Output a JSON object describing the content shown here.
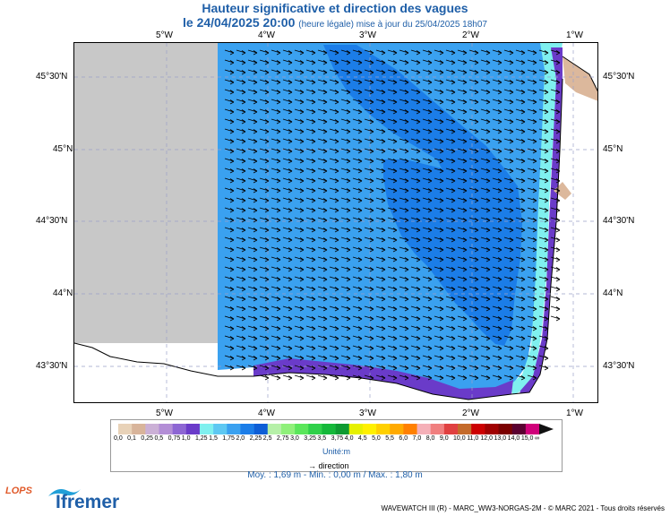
{
  "header": {
    "title": "Hauteur significative et direction des vagues",
    "datetime": "le 24/04/2025 20:00",
    "subtitle": "(heure légale) mise à jour du 25/04/2025 18h07"
  },
  "axes": {
    "lon_labels": [
      "5°W",
      "4°W",
      "3°W",
      "2°W",
      "1°W"
    ],
    "lat_labels": [
      "45°30'N",
      "45°N",
      "44°30'N",
      "44°N",
      "43°30'N"
    ]
  },
  "legend": {
    "ticks": [
      "0,0",
      "0,1",
      "0,25",
      "0,5",
      "0,75",
      "1,0",
      "1,25",
      "1,5",
      "1,75",
      "2,0",
      "2,25",
      "2,5",
      "2,75",
      "3,0",
      "3,25",
      "3,5",
      "3,75",
      "4,0",
      "4,5",
      "5,0",
      "5,5",
      "6,0",
      "7,0",
      "8,0",
      "9,0",
      "10,0",
      "11,0",
      "12,0",
      "13,0",
      "14,0",
      "15,0",
      "∞"
    ],
    "colors": [
      "#e8d2b8",
      "#d8b49a",
      "#cbb0d6",
      "#b38ed6",
      "#8d66d3",
      "#6a3bc9",
      "#7ff0ef",
      "#5ec8f2",
      "#3aa1f0",
      "#1b7de8",
      "#0d5ed6",
      "#b6f0a8",
      "#8ff07a",
      "#5ae65a",
      "#2fd04a",
      "#15b83a",
      "#0e9a31",
      "#e6f000",
      "#fff000",
      "#ffd000",
      "#ffaa00",
      "#ff8000",
      "#f5b0b8",
      "#f07f7f",
      "#e04040",
      "#c46a2a",
      "#cc0000",
      "#a00000",
      "#7a0000",
      "#5a0030",
      "#d0007a"
    ],
    "unit": "Unité:m",
    "direction_label": "direction"
  },
  "stats": "Moy. : 1,69 m   -   Min. : 0,00 m / Max. : 1,80 m",
  "footer": "WAVEWATCH III (R) - MARC_WW3-NORGAS-2M - © MARC 2021 - Tous droits réservés",
  "logos": {
    "lops": "LOPS",
    "ifremer": "Ifremer"
  },
  "map_colors": {
    "land": "#c8c8c8",
    "shore": "#dcb89c",
    "sea_light": "#3aa1f0",
    "sea_dark": "#1b7de8",
    "near_coast": "#6a3bc9",
    "very_near": "#7ff0ef"
  }
}
